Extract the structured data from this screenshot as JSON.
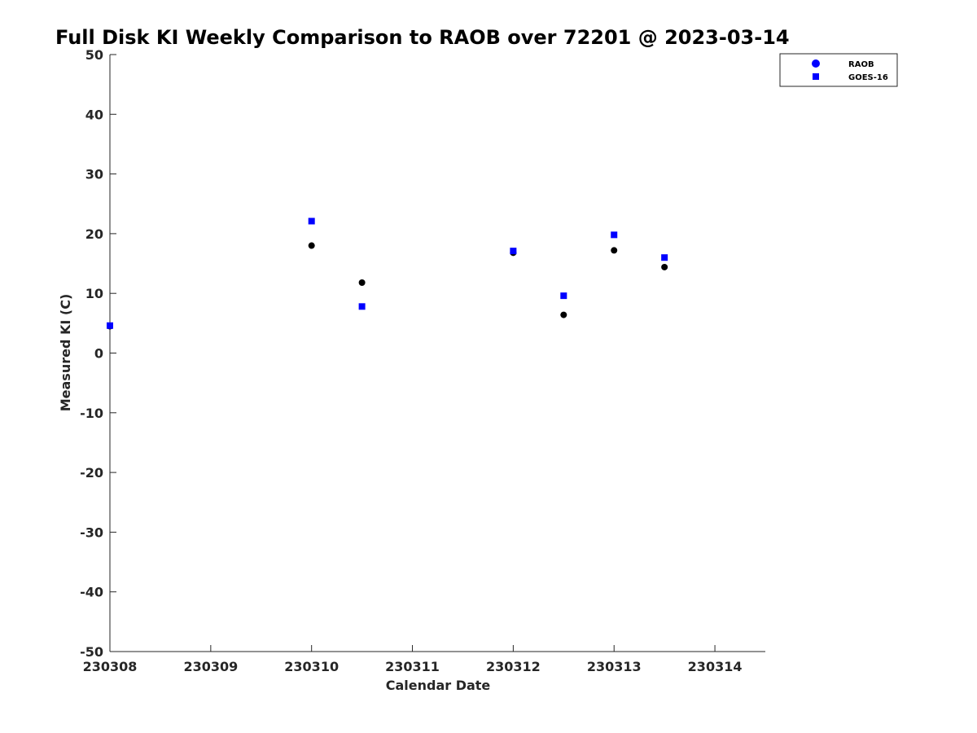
{
  "chart_data": {
    "type": "scatter",
    "title": "Full Disk KI Weekly Comparison to RAOB over 72201 @ 2023-03-14",
    "xlabel": "Calendar Date",
    "ylabel": "Measured KI (C)",
    "xlim": [
      "230308",
      "230314.5"
    ],
    "ylim": [
      -50,
      50
    ],
    "x_ticks": [
      "230308",
      "230309",
      "230310",
      "230311",
      "230312",
      "230313",
      "230314"
    ],
    "y_ticks": [
      50,
      40,
      30,
      20,
      10,
      0,
      -10,
      -20,
      -30,
      -40,
      -50
    ],
    "grid": false,
    "legend_position": "top-right",
    "series": [
      {
        "name": "RAOB",
        "marker": "circle",
        "color": "#000000",
        "legend_color": "#0000ff",
        "points": [
          {
            "x": "230308 00Z",
            "y": 4.5
          },
          {
            "x": "230310 00Z",
            "y": 18.0
          },
          {
            "x": "230310 12Z",
            "y": 11.8
          },
          {
            "x": "230312 00Z",
            "y": 16.8
          },
          {
            "x": "230312 12Z",
            "y": 6.4
          },
          {
            "x": "230313 00Z",
            "y": 17.2
          },
          {
            "x": "230313 12Z",
            "y": 14.4
          }
        ]
      },
      {
        "name": "GOES-16",
        "marker": "square",
        "color": "#0000ff",
        "points": [
          {
            "x": "230308 00Z",
            "y": 4.6
          },
          {
            "x": "230310 00Z",
            "y": 22.1
          },
          {
            "x": "230310 12Z",
            "y": 7.8
          },
          {
            "x": "230312 00Z",
            "y": 17.1
          },
          {
            "x": "230312 12Z",
            "y": 9.6
          },
          {
            "x": "230313 00Z",
            "y": 19.8
          },
          {
            "x": "230313 12Z",
            "y": 16.0
          }
        ]
      }
    ]
  }
}
